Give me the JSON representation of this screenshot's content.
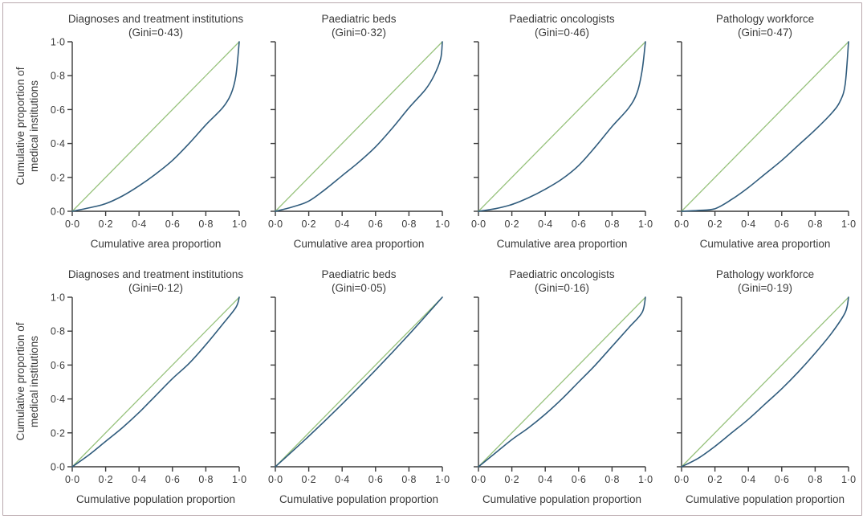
{
  "figure": {
    "y_axis_title_line1": "Cumulative proportion of",
    "y_axis_title_line2": "medical institutions"
  },
  "colors": {
    "equality_line": "#97c27c",
    "lorenz_curve": "#2f5b7c",
    "axis": "#3a3a3a",
    "frame": "#b9a8ad"
  },
  "chart_data": [
    {
      "type": "line",
      "title": "Diagnoses and treatment institutions",
      "subtitle": "(Gini=0·43)",
      "xlabel": "Cumulative area proportion",
      "ylabel": "Cumulative proportion of medical institutions",
      "xlim": [
        0,
        1
      ],
      "ylim": [
        0,
        1
      ],
      "xticks": [
        "0·0",
        "0·2",
        "0·4",
        "0·6",
        "0·8",
        "1·0"
      ],
      "yticks": [
        "0·0",
        "0·2",
        "0·4",
        "0·6",
        "0·8",
        "1·0"
      ],
      "show_yticklabels": true,
      "series": [
        {
          "name": "Line of equality",
          "x": [
            0,
            1
          ],
          "y": [
            0,
            1
          ]
        },
        {
          "name": "Lorenz curve",
          "x": [
            0,
            0.1,
            0.2,
            0.3,
            0.4,
            0.5,
            0.6,
            0.7,
            0.8,
            0.9,
            0.95,
            0.98,
            1.0
          ],
          "y": [
            0,
            0.02,
            0.045,
            0.09,
            0.15,
            0.22,
            0.3,
            0.4,
            0.51,
            0.61,
            0.69,
            0.8,
            1.0
          ]
        }
      ]
    },
    {
      "type": "line",
      "title": "Paediatric beds",
      "subtitle": "(Gini=0·32)",
      "xlabel": "Cumulative area proportion",
      "ylabel": "",
      "xlim": [
        0,
        1
      ],
      "ylim": [
        0,
        1
      ],
      "xticks": [
        "0·0",
        "0·2",
        "0·4",
        "0·6",
        "0·8",
        "1·0"
      ],
      "yticks": [
        "0·0",
        "0·2",
        "0·4",
        "0·6",
        "0·8",
        "1·0"
      ],
      "show_yticklabels": false,
      "series": [
        {
          "name": "Line of equality",
          "x": [
            0,
            1
          ],
          "y": [
            0,
            1
          ]
        },
        {
          "name": "Lorenz curve",
          "x": [
            0,
            0.1,
            0.2,
            0.3,
            0.4,
            0.5,
            0.6,
            0.7,
            0.8,
            0.9,
            0.95,
            0.99,
            1.0
          ],
          "y": [
            0,
            0.025,
            0.06,
            0.13,
            0.21,
            0.29,
            0.38,
            0.49,
            0.61,
            0.72,
            0.8,
            0.9,
            1.0
          ]
        }
      ]
    },
    {
      "type": "line",
      "title": "Paediatric oncologists",
      "subtitle": "(Gini=0·46)",
      "xlabel": "Cumulative area proportion",
      "ylabel": "",
      "xlim": [
        0,
        1
      ],
      "ylim": [
        0,
        1
      ],
      "xticks": [
        "0·0",
        "0·2",
        "0·4",
        "0·6",
        "0·8",
        "1·0"
      ],
      "yticks": [
        "0·0",
        "0·2",
        "0·4",
        "0·6",
        "0·8",
        "1·0"
      ],
      "show_yticklabels": false,
      "series": [
        {
          "name": "Line of equality",
          "x": [
            0,
            1
          ],
          "y": [
            0,
            1
          ]
        },
        {
          "name": "Lorenz curve",
          "x": [
            0,
            0.1,
            0.2,
            0.3,
            0.4,
            0.5,
            0.6,
            0.7,
            0.8,
            0.9,
            0.95,
            0.98,
            1.0
          ],
          "y": [
            0,
            0.015,
            0.04,
            0.08,
            0.13,
            0.19,
            0.27,
            0.38,
            0.5,
            0.61,
            0.7,
            0.83,
            1.0
          ]
        }
      ]
    },
    {
      "type": "line",
      "title": "Pathology workforce",
      "subtitle": "(Gini=0·47)",
      "xlabel": "Cumulative area proportion",
      "ylabel": "",
      "xlim": [
        0,
        1
      ],
      "ylim": [
        0,
        1
      ],
      "xticks": [
        "0·0",
        "0·2",
        "0·4",
        "0·6",
        "0·8",
        "1·0"
      ],
      "yticks": [
        "0·0",
        "0·2",
        "0·4",
        "0·6",
        "0·8",
        "1·0"
      ],
      "show_yticklabels": false,
      "series": [
        {
          "name": "Line of equality",
          "x": [
            0,
            1
          ],
          "y": [
            0,
            1
          ]
        },
        {
          "name": "Lorenz curve",
          "x": [
            0,
            0.1,
            0.2,
            0.3,
            0.4,
            0.5,
            0.6,
            0.7,
            0.8,
            0.9,
            0.95,
            0.98,
            1.0
          ],
          "y": [
            0,
            0.005,
            0.015,
            0.07,
            0.14,
            0.22,
            0.3,
            0.39,
            0.48,
            0.58,
            0.65,
            0.75,
            1.0
          ]
        }
      ]
    },
    {
      "type": "line",
      "title": "Diagnoses and treatment institutions",
      "subtitle": "(Gini=0·12)",
      "xlabel": "Cumulative population proportion",
      "ylabel": "Cumulative proportion of medical institutions",
      "xlim": [
        0,
        1
      ],
      "ylim": [
        0,
        1
      ],
      "xticks": [
        "0·0",
        "0·2",
        "0·4",
        "0·6",
        "0·8",
        "1·0"
      ],
      "yticks": [
        "0·0",
        "0·2",
        "0·4",
        "0·6",
        "0·8",
        "1·0"
      ],
      "show_yticklabels": true,
      "series": [
        {
          "name": "Line of equality",
          "x": [
            0,
            1
          ],
          "y": [
            0,
            1
          ]
        },
        {
          "name": "Lorenz curve",
          "x": [
            0,
            0.1,
            0.2,
            0.3,
            0.4,
            0.5,
            0.6,
            0.7,
            0.8,
            0.9,
            0.98,
            1.0
          ],
          "y": [
            0,
            0.07,
            0.15,
            0.23,
            0.32,
            0.42,
            0.52,
            0.61,
            0.72,
            0.84,
            0.94,
            1.0
          ]
        }
      ]
    },
    {
      "type": "line",
      "title": "Paediatric beds",
      "subtitle": "(Gini=0·05)",
      "xlabel": "Cumulative population proportion",
      "ylabel": "",
      "xlim": [
        0,
        1
      ],
      "ylim": [
        0,
        1
      ],
      "xticks": [
        "0·0",
        "0·2",
        "0·4",
        "0·6",
        "0·8",
        "1·0"
      ],
      "yticks": [
        "0·0",
        "0·2",
        "0·4",
        "0·6",
        "0·8",
        "1·0"
      ],
      "show_yticklabels": false,
      "series": [
        {
          "name": "Line of equality",
          "x": [
            0,
            1
          ],
          "y": [
            0,
            1
          ]
        },
        {
          "name": "Lorenz curve",
          "x": [
            0,
            0.2,
            0.4,
            0.6,
            0.8,
            1.0
          ],
          "y": [
            0,
            0.18,
            0.37,
            0.57,
            0.78,
            1.0
          ]
        }
      ]
    },
    {
      "type": "line",
      "title": "Paediatric oncologists",
      "subtitle": "(Gini=0·16)",
      "xlabel": "Cumulative population proportion",
      "ylabel": "",
      "xlim": [
        0,
        1
      ],
      "ylim": [
        0,
        1
      ],
      "xticks": [
        "0·0",
        "0·2",
        "0·4",
        "0·6",
        "0·8",
        "1·0"
      ],
      "yticks": [
        "0·0",
        "0·2",
        "0·4",
        "0·6",
        "0·8",
        "1·0"
      ],
      "show_yticklabels": false,
      "series": [
        {
          "name": "Line of equality",
          "x": [
            0,
            1
          ],
          "y": [
            0,
            1
          ]
        },
        {
          "name": "Lorenz curve",
          "x": [
            0,
            0.1,
            0.2,
            0.3,
            0.4,
            0.5,
            0.6,
            0.7,
            0.8,
            0.9,
            0.98,
            1.0
          ],
          "y": [
            0,
            0.08,
            0.16,
            0.23,
            0.31,
            0.4,
            0.5,
            0.6,
            0.71,
            0.82,
            0.91,
            1.0
          ]
        }
      ]
    },
    {
      "type": "line",
      "title": "Pathology workforce",
      "subtitle": "(Gini=0·19)",
      "xlabel": "Cumulative population proportion",
      "ylabel": "",
      "xlim": [
        0,
        1
      ],
      "ylim": [
        0,
        1
      ],
      "xticks": [
        "0·0",
        "0·2",
        "0·4",
        "0·6",
        "0·8",
        "1·0"
      ],
      "yticks": [
        "0·0",
        "0·2",
        "0·4",
        "0·6",
        "0·8",
        "1·0"
      ],
      "show_yticklabels": false,
      "series": [
        {
          "name": "Line of equality",
          "x": [
            0,
            1
          ],
          "y": [
            0,
            1
          ]
        },
        {
          "name": "Lorenz curve",
          "x": [
            0,
            0.1,
            0.2,
            0.3,
            0.4,
            0.5,
            0.6,
            0.7,
            0.8,
            0.9,
            0.98,
            1.0
          ],
          "y": [
            0,
            0.05,
            0.12,
            0.2,
            0.28,
            0.37,
            0.46,
            0.56,
            0.67,
            0.79,
            0.91,
            1.0
          ]
        }
      ]
    }
  ]
}
